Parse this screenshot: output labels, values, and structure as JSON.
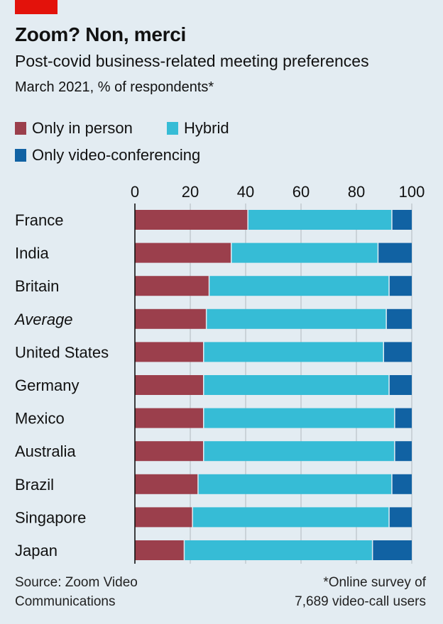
{
  "header": {
    "title": "Zoom? Non, merci",
    "subtitle": "Post-covid business-related meeting preferences",
    "subtitle2": "March 2021, % of respondents*"
  },
  "footer": {
    "source_line1": "Source: Zoom Video",
    "source_line2": "Communications",
    "note_line1": "*Online survey of",
    "note_line2": "7,689 video-call users"
  },
  "colors": {
    "brand_red": "#e3120b",
    "in_person": "#9b3f4c",
    "hybrid": "#36bcd6",
    "video": "#1162a3",
    "background": "#e3ecf2"
  },
  "chart_data": {
    "type": "bar",
    "orientation": "horizontal",
    "stacked": true,
    "title": "Zoom? Non, merci",
    "subtitle": "Post-covid business-related meeting preferences",
    "xlabel": "",
    "ylabel": "",
    "xlim": [
      0,
      100
    ],
    "xticks": [
      "0",
      "20",
      "40",
      "60",
      "80",
      "100"
    ],
    "xtick_values": [
      0,
      20,
      40,
      60,
      80,
      100
    ],
    "grid": true,
    "legend_position": "top-left",
    "categories": [
      "France",
      "India",
      "Britain",
      "Average",
      "United States",
      "Germany",
      "Mexico",
      "Australia",
      "Brazil",
      "Singapore",
      "Japan"
    ],
    "italic_categories": [
      "Average"
    ],
    "series": [
      {
        "name": "Only in person",
        "color": "#9b3f4c",
        "values": [
          41,
          35,
          27,
          26,
          25,
          25,
          25,
          25,
          23,
          21,
          18
        ]
      },
      {
        "name": "Hybrid",
        "color": "#36bcd6",
        "values": [
          52,
          53,
          65,
          65,
          65,
          67,
          69,
          69,
          70,
          71,
          68
        ]
      },
      {
        "name": "Only video-conferencing",
        "color": "#1162a3",
        "values": [
          7,
          12,
          8,
          9,
          10,
          8,
          6,
          6,
          7,
          8,
          14
        ]
      }
    ]
  }
}
